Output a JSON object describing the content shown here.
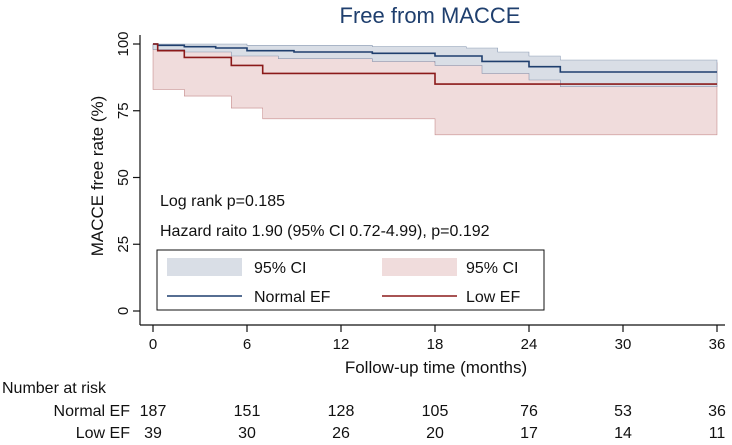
{
  "chart_data": {
    "type": "line",
    "title": "Free from MACCE",
    "xlabel": "Follow-up time (months)",
    "ylabel": "MACCE free rate (%)",
    "xlim": [
      0,
      36
    ],
    "ylim": [
      0,
      100
    ],
    "xticks": [
      0,
      6,
      12,
      18,
      24,
      30,
      36
    ],
    "yticks": [
      0,
      25,
      50,
      75,
      100
    ],
    "annotations": [
      "Log rank p=0.185",
      "Hazard raito 1.90 (95% CI 0.72-4.99), p=0.192"
    ],
    "legend": {
      "placement": "bottom-inside",
      "entries": [
        {
          "label": "95% CI",
          "kind": "band",
          "series": "Normal EF"
        },
        {
          "label": "95% CI",
          "kind": "band",
          "series": "Low EF"
        },
        {
          "label": "Normal EF",
          "kind": "line",
          "series": "Normal EF"
        },
        {
          "label": "Low EF",
          "kind": "line",
          "series": "Low EF"
        }
      ]
    },
    "series": [
      {
        "name": "Normal EF",
        "color": "#1f3f6e",
        "band_color": "#d9dee6",
        "steps": [
          [
            0,
            100
          ],
          [
            0.3,
            99.5
          ],
          [
            2,
            99
          ],
          [
            4,
            98.5
          ],
          [
            6,
            97.5
          ],
          [
            9,
            97
          ],
          [
            14,
            96.5
          ],
          [
            18,
            95.5
          ],
          [
            21,
            93.5
          ],
          [
            24,
            91.5
          ],
          [
            26,
            89.5
          ],
          [
            36,
            89.5
          ]
        ],
        "ci_upper": [
          [
            0,
            100
          ],
          [
            4,
            100
          ],
          [
            6,
            99.5
          ],
          [
            14,
            99
          ],
          [
            20,
            98.5
          ],
          [
            22,
            97
          ],
          [
            24,
            95.5
          ],
          [
            26,
            94
          ],
          [
            36,
            94
          ]
        ],
        "ci_lower": [
          [
            0,
            98
          ],
          [
            2,
            97
          ],
          [
            5,
            95.5
          ],
          [
            8,
            94.5
          ],
          [
            14,
            93.5
          ],
          [
            18,
            92
          ],
          [
            21,
            89
          ],
          [
            24,
            86.5
          ],
          [
            26,
            84
          ],
          [
            36,
            84
          ]
        ]
      },
      {
        "name": "Low EF",
        "color": "#8b1a1a",
        "band_color": "#f0dcdc",
        "steps": [
          [
            0,
            100
          ],
          [
            0.3,
            97.5
          ],
          [
            2,
            95
          ],
          [
            5,
            92
          ],
          [
            7,
            89
          ],
          [
            18,
            85
          ],
          [
            36,
            85
          ]
        ],
        "ci_upper": [
          [
            0,
            100
          ],
          [
            0.3,
            99.5
          ],
          [
            2,
            99
          ],
          [
            5,
            98
          ],
          [
            7,
            96
          ],
          [
            18,
            93
          ],
          [
            36,
            93
          ]
        ],
        "ci_lower": [
          [
            0,
            83
          ],
          [
            2,
            80.5
          ],
          [
            5,
            76
          ],
          [
            7,
            72
          ],
          [
            18,
            66
          ],
          [
            36,
            66
          ]
        ]
      }
    ]
  },
  "risk_table": {
    "heading": "Number at risk",
    "rows": [
      {
        "label": "Normal EF",
        "values": [
          "187",
          "151",
          "128",
          "105",
          "76",
          "53",
          "36"
        ]
      },
      {
        "label": "Low EF",
        "values": [
          "39",
          "30",
          "26",
          "20",
          "17",
          "14",
          "11"
        ]
      }
    ]
  }
}
